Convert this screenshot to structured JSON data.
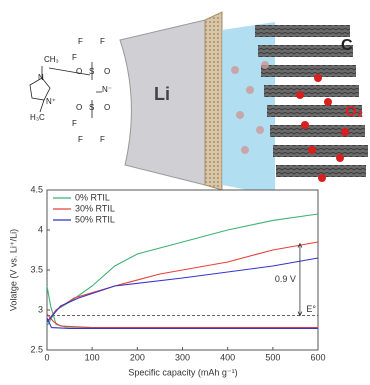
{
  "illustration": {
    "electrode": "Li",
    "cathode": "C",
    "gas": "O₂",
    "structure": [
      "CH₃",
      "N",
      "N⁺",
      "H₃C",
      "F",
      "F",
      "F",
      "S",
      "O",
      "O",
      "N⁻",
      "S",
      "O",
      "O",
      "F",
      "F",
      "F"
    ]
  },
  "chart_data": {
    "type": "line",
    "xlabel": "Specific capacity (mAh g⁻¹)",
    "ylabel": "Volatge (V vs. Li⁺/Li)",
    "xlim": [
      0,
      600
    ],
    "xticks": [
      0,
      100,
      200,
      300,
      400,
      500,
      600
    ],
    "ylim": [
      2.5,
      4.5
    ],
    "yticks": [
      2.5,
      3,
      3.5,
      4,
      4.5
    ],
    "legend": "upper left",
    "dashed_line": 2.93,
    "annotations": [
      {
        "text": "0.9 V",
        "x": 560,
        "y_from": 2.93,
        "y_to": 3.83
      },
      {
        "text": "E°",
        "x": 600,
        "y": 2.93
      }
    ],
    "series": [
      {
        "name": "0% RTIL",
        "color": "#3cb371",
        "x": [
          0,
          8,
          20,
          40,
          100,
          300,
          600,
          null,
          0,
          20,
          50,
          100,
          150,
          200,
          300,
          400,
          500,
          600
        ],
        "values": [
          3.3,
          3.05,
          2.82,
          2.79,
          2.78,
          2.78,
          2.78,
          null,
          2.8,
          3.0,
          3.1,
          3.3,
          3.55,
          3.7,
          3.85,
          4.0,
          4.12,
          4.2
        ]
      },
      {
        "name": "30% RTIL",
        "color": "#e8413c",
        "x": [
          0,
          15,
          30,
          100,
          300,
          600,
          null,
          0,
          20,
          60,
          150,
          250,
          400,
          500,
          600
        ],
        "values": [
          2.95,
          2.85,
          2.8,
          2.78,
          2.78,
          2.78,
          null,
          2.85,
          3.0,
          3.15,
          3.3,
          3.45,
          3.6,
          3.75,
          3.85
        ]
      },
      {
        "name": "50% RTIL",
        "color": "#3535c8",
        "x": [
          0,
          10,
          50,
          300,
          600,
          null,
          0,
          30,
          70,
          150,
          300,
          500,
          600
        ],
        "values": [
          2.9,
          2.78,
          2.77,
          2.77,
          2.77,
          null,
          2.85,
          3.05,
          3.15,
          3.3,
          3.4,
          3.55,
          3.65
        ]
      }
    ]
  }
}
